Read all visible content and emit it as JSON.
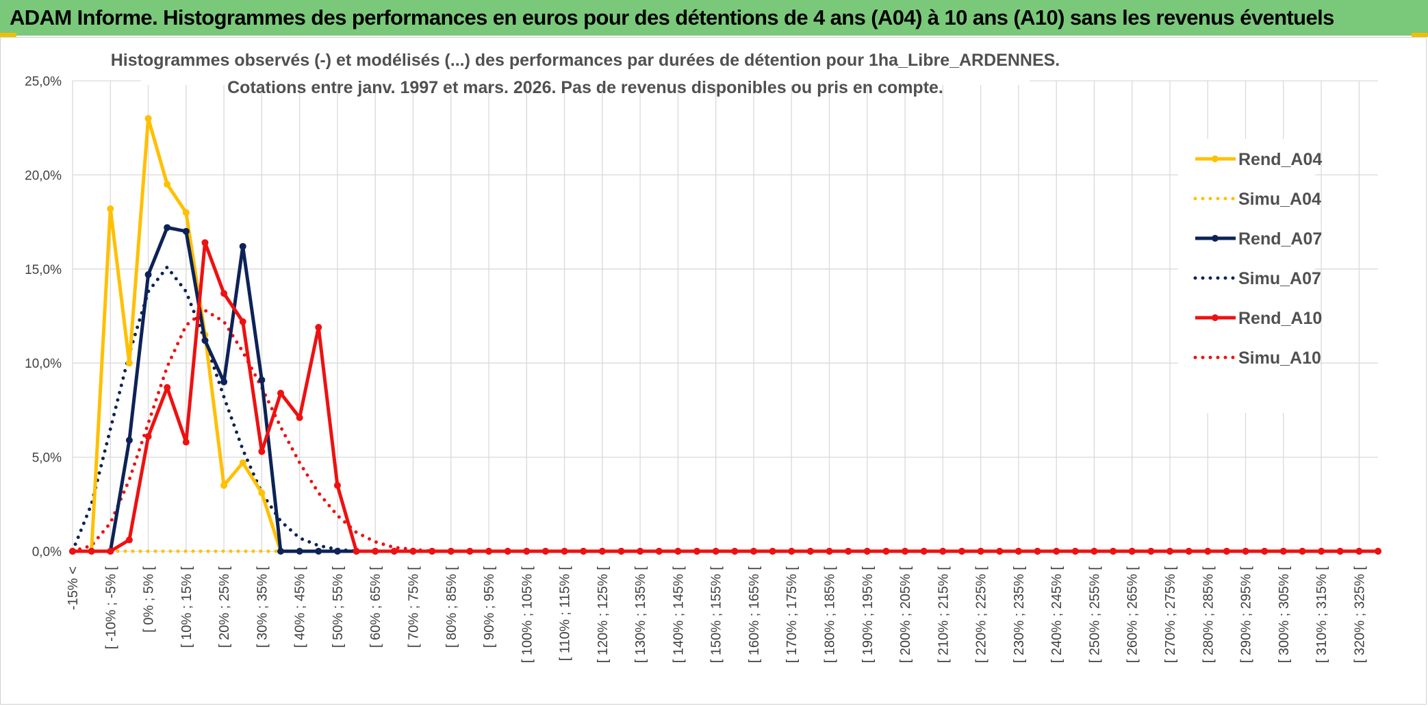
{
  "banner": {
    "title": "ADAM Informe. Histogrammes des performances en euros pour des détentions de 4 ans (A04) à 10 ans (A10) sans les revenus éventuels",
    "color": "#7ac97a",
    "accent": "#f0c000"
  },
  "chart_data": {
    "type": "line",
    "title": "Histogrammes observés (-) et modélisés (...) des performances par durées de détention pour 1ha_Libre_ARDENNES.",
    "subtitle": "Cotations entre janv. 1997 et mars. 2026. Pas de revenus disponibles ou pris en compte.",
    "grid": true,
    "legend_position": "right",
    "ylim": [
      0,
      25
    ],
    "y_ticks": [
      "0,0%",
      "5,0%",
      "10,0%",
      "15,0%",
      "20,0%",
      "25,0%"
    ],
    "x_labels": [
      "-15% <",
      "[ -10% ; -5% [",
      "[ 0% ; 5% [",
      "[ 10% ; 15% [",
      "[ 20% ; 25% [",
      "[ 30% ; 35% [",
      "[ 40% ; 45% [",
      "[ 50% ; 55% [",
      "[ 60% ; 65% [",
      "[ 70% ; 75% [",
      "[ 80% ; 85% [",
      "[ 90% ; 95% [",
      "[ 100% ; 105% [",
      "[ 110% ; 115% [",
      "[ 120% ; 125% [",
      "[ 130% ; 135% [",
      "[ 140% ; 145% [",
      "[ 150% ; 155% [",
      "[ 160% ; 165% [",
      "[ 170% ; 175% [",
      "[ 180% ; 185% [",
      "[ 190% ; 195% [",
      "[ 200% ; 205% [",
      "[ 210% ; 215% [",
      "[ 220% ; 225% [",
      "[ 230% ; 235% [",
      "[ 240% ; 245% [",
      "[ 250% ; 255% [",
      "[ 260% ; 265% [",
      "[ 270% ; 275% [",
      "[ 280% ; 285% [",
      "[ 290% ; 295% [",
      "[ 300% ; 305% [",
      "[ 310% ; 315% [",
      "[ 320% ; 325% ["
    ],
    "series": [
      {
        "name": "Rend_A04",
        "color": "#ffc000",
        "style": "solid",
        "markers": true,
        "values": [
          0,
          0,
          18.2,
          10.0,
          23.0,
          19.5,
          18.0,
          11.5,
          3.5,
          4.7,
          3.1,
          0,
          0,
          0,
          0,
          0,
          0,
          0,
          0,
          0,
          0,
          0,
          0,
          0,
          0,
          0,
          0,
          0,
          0,
          0,
          0,
          0,
          0,
          0,
          0,
          0,
          0,
          0,
          0,
          0,
          0,
          0,
          0,
          0,
          0,
          0,
          0,
          0,
          0,
          0,
          0,
          0,
          0,
          0,
          0,
          0,
          0,
          0,
          0,
          0,
          0,
          0,
          0,
          0,
          0,
          0,
          0,
          0,
          0,
          0
        ]
      },
      {
        "name": "Simu_A04",
        "color": "#ffc000",
        "style": "dotted",
        "markers": false,
        "values": [
          0,
          0,
          0,
          0,
          0,
          0,
          0,
          0,
          0,
          0,
          0,
          0,
          0,
          0,
          0,
          0,
          0,
          0,
          0,
          0,
          0,
          0,
          0,
          0,
          0,
          0,
          0,
          0,
          0,
          0,
          0,
          0,
          0,
          0,
          0,
          0,
          0,
          0,
          0,
          0,
          0,
          0,
          0,
          0,
          0,
          0,
          0,
          0,
          0,
          0,
          0,
          0,
          0,
          0,
          0,
          0,
          0,
          0,
          0,
          0,
          0,
          0,
          0,
          0,
          0,
          0,
          0,
          0,
          0,
          0
        ]
      },
      {
        "name": "Rend_A07",
        "color": "#0d2357",
        "style": "solid",
        "markers": true,
        "values": [
          0,
          0,
          0,
          5.9,
          14.7,
          17.2,
          17.0,
          11.2,
          9.0,
          16.2,
          9.1,
          0,
          0,
          0,
          0,
          0,
          0,
          0,
          0,
          0,
          0,
          0,
          0,
          0,
          0,
          0,
          0,
          0,
          0,
          0,
          0,
          0,
          0,
          0,
          0,
          0,
          0,
          0,
          0,
          0,
          0,
          0,
          0,
          0,
          0,
          0,
          0,
          0,
          0,
          0,
          0,
          0,
          0,
          0,
          0,
          0,
          0,
          0,
          0,
          0,
          0,
          0,
          0,
          0,
          0,
          0,
          0,
          0,
          0,
          0
        ]
      },
      {
        "name": "Simu_A07",
        "color": "#0d2357",
        "style": "dotted",
        "markers": false,
        "values": [
          0,
          2.5,
          6.5,
          10.5,
          13.8,
          15.1,
          13.8,
          11.2,
          8.2,
          5.4,
          3.1,
          1.6,
          0.7,
          0.3,
          0.1,
          0,
          0,
          0,
          0,
          0,
          0,
          0,
          0,
          0,
          0,
          0,
          0,
          0,
          0,
          0,
          0,
          0,
          0,
          0,
          0,
          0,
          0,
          0,
          0,
          0,
          0,
          0,
          0,
          0,
          0,
          0,
          0,
          0,
          0,
          0,
          0,
          0,
          0,
          0,
          0,
          0,
          0,
          0,
          0,
          0,
          0,
          0,
          0,
          0,
          0,
          0,
          0,
          0,
          0,
          0
        ]
      },
      {
        "name": "Rend_A10",
        "color": "#ee1111",
        "style": "solid",
        "markers": true,
        "values": [
          0,
          0,
          0,
          0.6,
          6.1,
          8.7,
          5.8,
          16.4,
          13.7,
          12.2,
          5.3,
          8.4,
          7.1,
          11.9,
          3.5,
          0,
          0,
          0,
          0,
          0,
          0,
          0,
          0,
          0,
          0,
          0,
          0,
          0,
          0,
          0,
          0,
          0,
          0,
          0,
          0,
          0,
          0,
          0,
          0,
          0,
          0,
          0,
          0,
          0,
          0,
          0,
          0,
          0,
          0,
          0,
          0,
          0,
          0,
          0,
          0,
          0,
          0,
          0,
          0,
          0,
          0,
          0,
          0,
          0,
          0,
          0,
          0,
          0,
          0,
          0
        ]
      },
      {
        "name": "Simu_A10",
        "color": "#ee1111",
        "style": "dotted",
        "markers": false,
        "values": [
          0,
          0.3,
          1.5,
          3.8,
          6.8,
          9.8,
          12.0,
          12.8,
          12.2,
          10.6,
          8.7,
          6.6,
          4.7,
          3.1,
          1.9,
          1.0,
          0.5,
          0.2,
          0.1,
          0,
          0,
          0,
          0,
          0,
          0,
          0,
          0,
          0,
          0,
          0,
          0,
          0,
          0,
          0,
          0,
          0,
          0,
          0,
          0,
          0,
          0,
          0,
          0,
          0,
          0,
          0,
          0,
          0,
          0,
          0,
          0,
          0,
          0,
          0,
          0,
          0,
          0,
          0,
          0,
          0,
          0,
          0,
          0,
          0,
          0,
          0,
          0,
          0,
          0,
          0
        ]
      }
    ]
  }
}
